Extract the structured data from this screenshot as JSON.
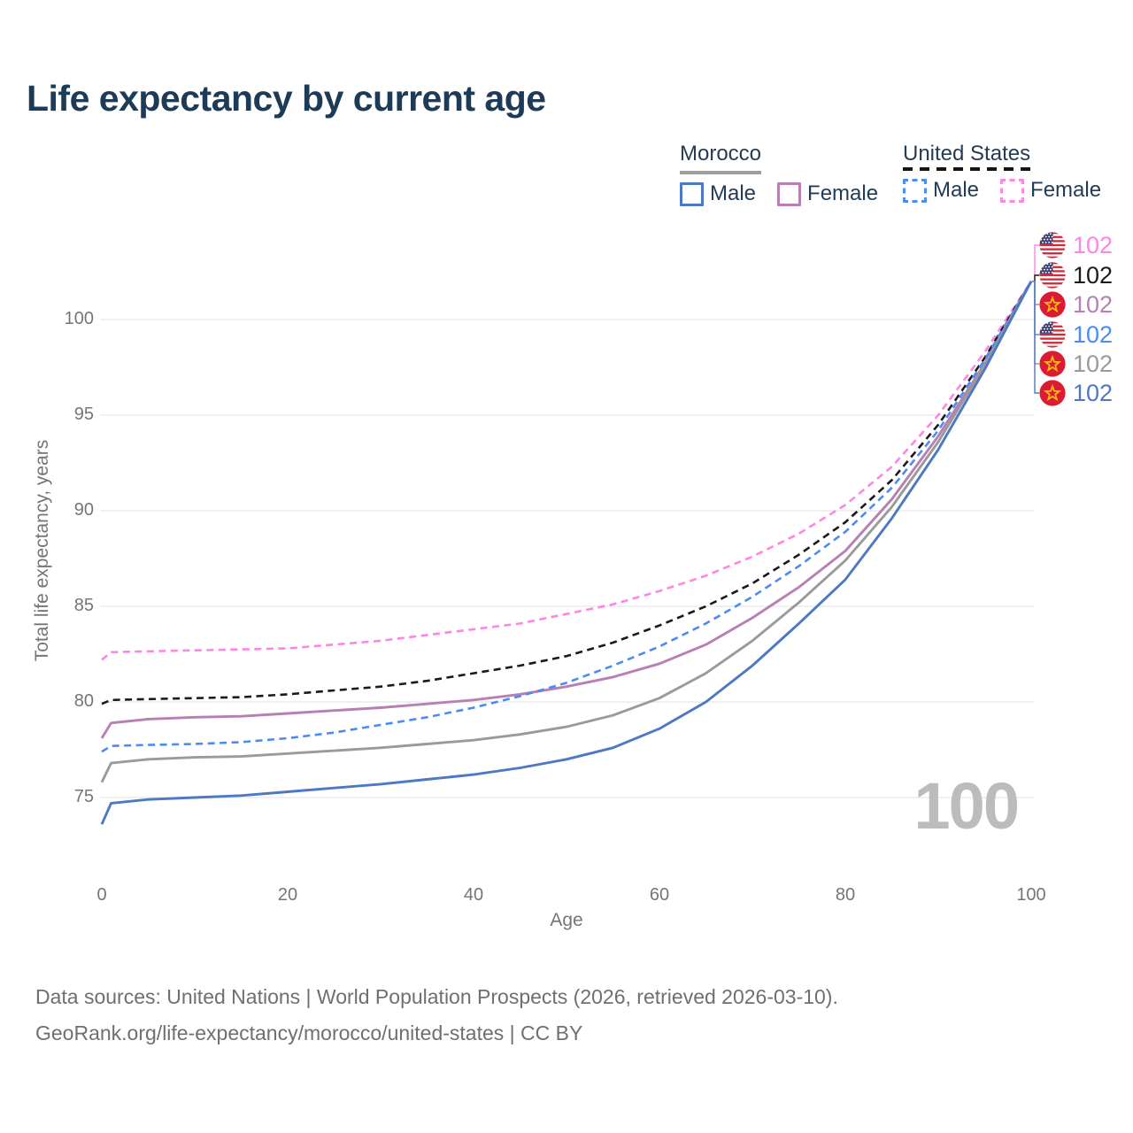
{
  "title": "Life expectancy by current age",
  "legend": {
    "groups": [
      {
        "country": "Morocco",
        "line_style": "solid",
        "underline_color": "#9e9e9e",
        "items": [
          {
            "label": "Male",
            "color": "#4d78c4",
            "dash": false
          },
          {
            "label": "Female",
            "color": "#b77fb3",
            "dash": false
          }
        ]
      },
      {
        "country": "United States",
        "line_style": "dashed",
        "underline_color": "#151515",
        "items": [
          {
            "label": "Male",
            "color": "#4b8bf5",
            "dash": true
          },
          {
            "label": "Female",
            "color": "#ff85e5",
            "dash": true
          }
        ]
      }
    ]
  },
  "axes": {
    "x_label": "Age",
    "y_label": "Total life expectancy, years"
  },
  "watermark": "100",
  "footer": {
    "line1": "Data sources: United Nations | World Population Prospects (2026, retrieved 2026-03-10).",
    "line2": "GeoRank.org/life-expectancy/morocco/united-states | CC BY"
  },
  "chart_data": {
    "type": "line",
    "title": "Life expectancy by current age",
    "xlabel": "Age",
    "ylabel": "Total life expectancy, years",
    "xlim": [
      0,
      100
    ],
    "ylim": [
      73,
      103
    ],
    "x_ticks": [
      0,
      20,
      40,
      60,
      80,
      100
    ],
    "y_ticks": [
      75,
      80,
      85,
      90,
      95,
      100
    ],
    "grid": "horizontal-only",
    "legend_position": "top-right",
    "x": [
      0,
      1,
      5,
      10,
      15,
      20,
      25,
      30,
      35,
      40,
      45,
      50,
      55,
      60,
      65,
      70,
      75,
      80,
      85,
      90,
      95,
      100
    ],
    "series": [
      {
        "name": "United States — Female",
        "country": "United States",
        "sex": "Female",
        "flag": "us",
        "color": "#ff85e5",
        "dash": true,
        "end_label": "102",
        "values": [
          82.2,
          82.6,
          82.65,
          82.7,
          82.75,
          82.8,
          83.0,
          83.2,
          83.5,
          83.8,
          84.1,
          84.6,
          85.1,
          85.8,
          86.6,
          87.6,
          88.8,
          90.3,
          92.3,
          95.0,
          98.3,
          102
        ]
      },
      {
        "name": "United States — Both sexes",
        "country": "United States",
        "sex": "Both sexes",
        "flag": "us",
        "color": "#1a1a1a",
        "dash": true,
        "end_label": "102",
        "values": [
          79.9,
          80.1,
          80.15,
          80.2,
          80.25,
          80.4,
          80.6,
          80.8,
          81.1,
          81.5,
          81.9,
          82.4,
          83.1,
          84.0,
          85.0,
          86.2,
          87.7,
          89.4,
          91.6,
          94.5,
          98.0,
          102
        ]
      },
      {
        "name": "Morocco — Female",
        "country": "Morocco",
        "sex": "Female",
        "flag": "ma",
        "color": "#b77fb3",
        "dash": false,
        "end_label": "102",
        "values": [
          78.1,
          78.9,
          79.1,
          79.2,
          79.25,
          79.4,
          79.55,
          79.7,
          79.9,
          80.1,
          80.4,
          80.8,
          81.3,
          82.0,
          83.0,
          84.4,
          86.0,
          87.9,
          90.6,
          93.9,
          97.7,
          102
        ]
      },
      {
        "name": "United States — Male",
        "country": "United States",
        "sex": "Male",
        "flag": "us",
        "color": "#4b8bf5",
        "dash": true,
        "end_label": "102",
        "values": [
          77.4,
          77.7,
          77.75,
          77.8,
          77.9,
          78.1,
          78.4,
          78.8,
          79.2,
          79.7,
          80.3,
          81.0,
          81.9,
          82.9,
          84.1,
          85.5,
          87.1,
          88.9,
          91.2,
          94.2,
          97.9,
          102
        ]
      },
      {
        "name": "Morocco — Both sexes",
        "country": "Morocco",
        "sex": "Both sexes",
        "flag": "ma",
        "color": "#9a9a9a",
        "dash": false,
        "end_label": "102",
        "values": [
          75.8,
          76.8,
          77.0,
          77.1,
          77.15,
          77.3,
          77.45,
          77.6,
          77.8,
          78.0,
          78.3,
          78.7,
          79.3,
          80.2,
          81.5,
          83.2,
          85.2,
          87.4,
          90.2,
          93.6,
          97.6,
          102
        ]
      },
      {
        "name": "Morocco — Male",
        "country": "Morocco",
        "sex": "Male",
        "flag": "ma",
        "color": "#4d78c4",
        "dash": false,
        "end_label": "102",
        "values": [
          73.6,
          74.7,
          74.9,
          75.0,
          75.1,
          75.3,
          75.5,
          75.7,
          75.95,
          76.2,
          76.55,
          77.0,
          77.6,
          78.6,
          80.0,
          81.9,
          84.1,
          86.4,
          89.6,
          93.2,
          97.4,
          102
        ]
      }
    ]
  }
}
